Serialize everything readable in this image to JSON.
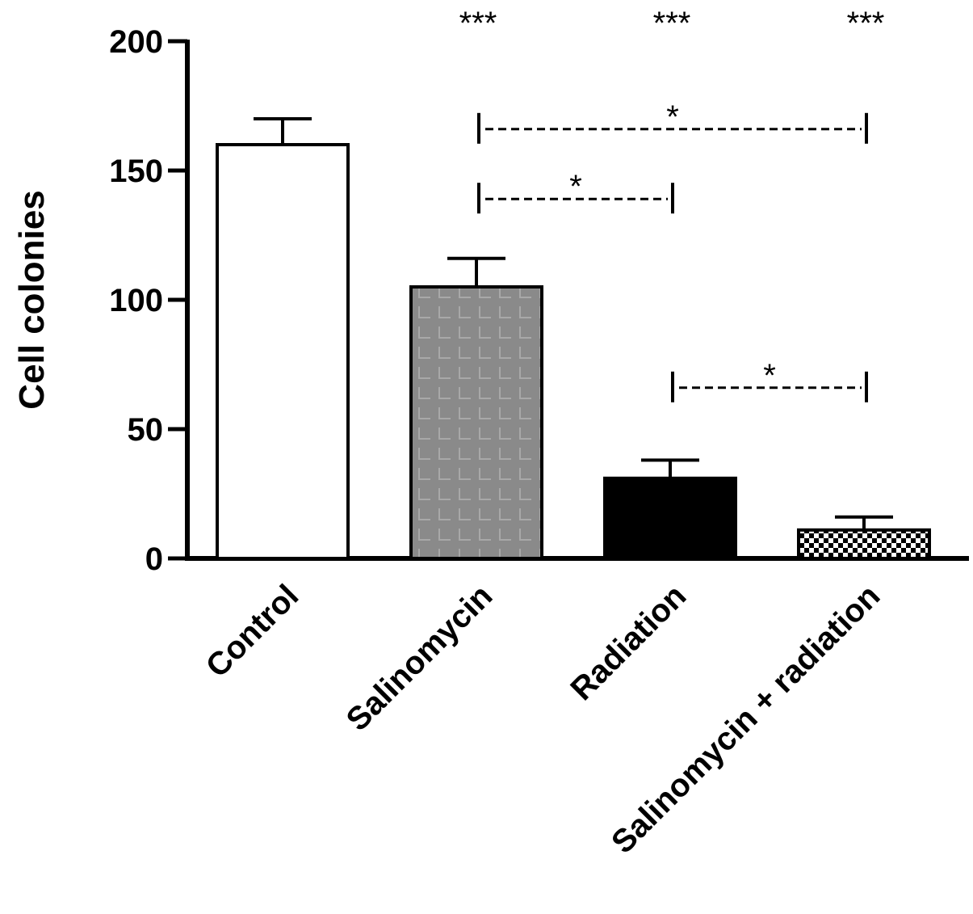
{
  "chart_data": {
    "type": "bar",
    "title": "",
    "xlabel": "",
    "ylabel": "Cell colonies",
    "categories": [
      "Control",
      "Salinomycin",
      "Radiation",
      "Salinomycin + radiation"
    ],
    "values": [
      160,
      105,
      31,
      11
    ],
    "errors": [
      10,
      11,
      7,
      5
    ],
    "ylim": [
      0,
      200
    ],
    "yticks": [
      0,
      50,
      100,
      150,
      200
    ],
    "grid": false,
    "legend": "none",
    "bar_fills": [
      "white",
      "gray-grid-texture",
      "black",
      "checkerboard"
    ],
    "significance_vs_control": [
      "",
      "***",
      "***",
      "***"
    ],
    "comparisons": [
      {
        "from": "Salinomycin",
        "to": "Salinomycin + radiation",
        "y": 166,
        "label": "*"
      },
      {
        "from": "Salinomycin",
        "to": "Radiation",
        "y": 139,
        "label": "*"
      },
      {
        "from": "Radiation",
        "to": "Salinomycin + radiation",
        "y": 66,
        "label": "*"
      }
    ],
    "colors": {
      "axis": "#000000",
      "gray_bar": "#8a8a8a",
      "gray_texture": "#a8a8a8"
    }
  }
}
